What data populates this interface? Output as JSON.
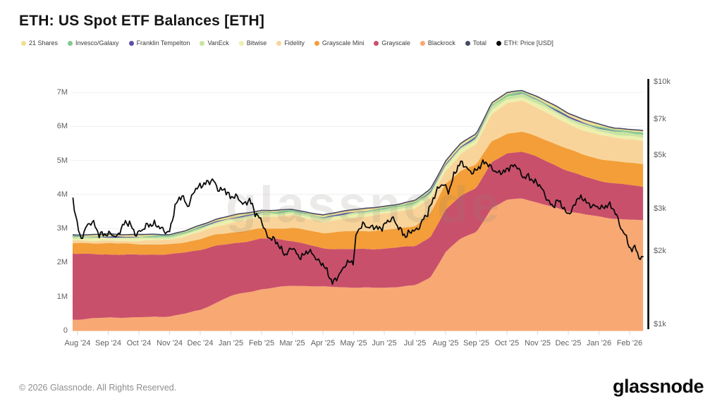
{
  "header": {
    "title": "ETH: US Spot ETF Balances [ETH]"
  },
  "watermark": "glassnode",
  "footer": {
    "copyright": "© 2026 Glassnode. All Rights Reserved.",
    "brand": "glassnode"
  },
  "legend": [
    {
      "label": "21 Shares",
      "color": "#F2DE91"
    },
    {
      "label": "Invesco/Galaxy",
      "color": "#82C98F"
    },
    {
      "label": "Franklin Tempelton",
      "color": "#5B51A8"
    },
    {
      "label": "VanEck",
      "color": "#C8E4A2"
    },
    {
      "label": "Bitwise",
      "color": "#EDEFAD"
    },
    {
      "label": "Fidelity",
      "color": "#F9D49A"
    },
    {
      "label": "Grayscale Mini",
      "color": "#F39E38"
    },
    {
      "label": "Grayscale",
      "color": "#C9506B"
    },
    {
      "label": "Blackrock",
      "color": "#F8A873"
    },
    {
      "label": "Total",
      "color": "#454A63"
    },
    {
      "label": "ETH: Price [USD]",
      "color": "#0A0A0A"
    }
  ],
  "chart_data": {
    "type": "area",
    "stacked": true,
    "title": "ETH: US Spot ETF Balances [ETH]",
    "x_unit": "months since Aug 2024, semi-monthly samples (step 0.5)",
    "t_start": 0,
    "t_step": 0.5,
    "x_ticks": [
      "Aug '24",
      "Sep '24",
      "Oct '24",
      "Nov '24",
      "Dec '24",
      "Jan '25",
      "Feb '25",
      "Mar '25",
      "Apr '25",
      "May '25",
      "Jun '25",
      "Jul '25",
      "Aug '25",
      "Sep '25",
      "Oct '25",
      "Nov '25",
      "Dec '25",
      "Jan '26",
      "Feb '26"
    ],
    "left_axis": {
      "title": "ETF balances (ETH, millions)",
      "ticks": [
        "0",
        "1M",
        "2M",
        "3M",
        "4M",
        "5M",
        "6M",
        "7M"
      ],
      "tick_values": [
        0,
        1,
        2,
        3,
        4,
        5,
        6,
        7
      ],
      "range": [
        0,
        7.35
      ],
      "grid": true
    },
    "right_axis": {
      "title": "ETH price (USD)",
      "scale": "log",
      "ticks": [
        "$1k",
        "$2k",
        "$3k",
        "$5k",
        "$7k",
        "$10k"
      ],
      "tick_values": [
        1000,
        2000,
        3000,
        5000,
        7000,
        10000
      ],
      "range": [
        1000,
        10000
      ]
    },
    "series": [
      {
        "name": "Blackrock",
        "color": "#F8A873",
        "values": [
          0.33,
          0.35,
          0.37,
          0.38,
          0.39,
          0.41,
          0.43,
          0.5,
          0.6,
          0.8,
          1.01,
          1.12,
          1.22,
          1.28,
          1.33,
          1.31,
          1.28,
          1.27,
          1.26,
          1.26,
          1.27,
          1.3,
          1.33,
          1.55,
          2.3,
          2.7,
          2.9,
          3.6,
          3.85,
          3.9,
          3.75,
          3.62,
          3.5,
          3.42,
          3.35,
          3.3,
          3.27,
          3.23
        ]
      },
      {
        "name": "Grayscale",
        "color": "#C9506B",
        "values": [
          1.93,
          1.9,
          1.88,
          1.86,
          1.84,
          1.82,
          1.8,
          1.79,
          1.78,
          1.7,
          1.55,
          1.5,
          1.48,
          1.4,
          1.3,
          1.22,
          1.14,
          1.14,
          1.14,
          1.13,
          1.13,
          1.14,
          1.15,
          1.2,
          1.25,
          1.28,
          1.3,
          1.33,
          1.35,
          1.36,
          1.35,
          1.28,
          1.2,
          1.12,
          1.05,
          1.02,
          1.0,
          0.99
        ]
      },
      {
        "name": "Grayscale Mini",
        "color": "#F39E38",
        "values": [
          0.31,
          0.31,
          0.31,
          0.31,
          0.31,
          0.31,
          0.31,
          0.31,
          0.31,
          0.31,
          0.31,
          0.31,
          0.31,
          0.33,
          0.4,
          0.42,
          0.44,
          0.48,
          0.52,
          0.54,
          0.56,
          0.58,
          0.6,
          0.68,
          0.75,
          0.72,
          0.68,
          0.64,
          0.6,
          0.59,
          0.6,
          0.61,
          0.62,
          0.63,
          0.65,
          0.66,
          0.68,
          0.68
        ]
      },
      {
        "name": "Fidelity",
        "color": "#F9D49A",
        "values": [
          0.08,
          0.08,
          0.09,
          0.09,
          0.1,
          0.11,
          0.12,
          0.16,
          0.21,
          0.26,
          0.3,
          0.32,
          0.33,
          0.33,
          0.35,
          0.34,
          0.33,
          0.37,
          0.41,
          0.43,
          0.46,
          0.48,
          0.5,
          0.45,
          0.4,
          0.5,
          0.6,
          0.8,
          0.87,
          0.9,
          0.85,
          0.8,
          0.75,
          0.72,
          0.7,
          0.68,
          0.67,
          0.66
        ]
      },
      {
        "name": "Bitwise",
        "color": "#EDEFAD",
        "values": [
          0.06,
          0.06,
          0.06,
          0.06,
          0.06,
          0.06,
          0.06,
          0.06,
          0.07,
          0.07,
          0.07,
          0.07,
          0.07,
          0.07,
          0.07,
          0.07,
          0.07,
          0.08,
          0.08,
          0.08,
          0.09,
          0.09,
          0.09,
          0.1,
          0.1,
          0.11,
          0.11,
          0.12,
          0.12,
          0.12,
          0.12,
          0.12,
          0.11,
          0.11,
          0.11,
          0.11,
          0.11,
          0.11
        ]
      },
      {
        "name": "VanEck",
        "color": "#C8E4A2",
        "values": [
          0.04,
          0.04,
          0.04,
          0.04,
          0.04,
          0.04,
          0.04,
          0.04,
          0.05,
          0.05,
          0.05,
          0.05,
          0.05,
          0.05,
          0.05,
          0.05,
          0.05,
          0.06,
          0.06,
          0.06,
          0.06,
          0.06,
          0.07,
          0.07,
          0.07,
          0.08,
          0.08,
          0.09,
          0.09,
          0.09,
          0.09,
          0.09,
          0.09,
          0.08,
          0.08,
          0.08,
          0.08,
          0.08
        ]
      },
      {
        "name": "Franklin Tempelton",
        "color": "#5B51A8",
        "values": [
          0.01,
          0.01,
          0.01,
          0.01,
          0.01,
          0.01,
          0.01,
          0.01,
          0.01,
          0.01,
          0.01,
          0.01,
          0.01,
          0.01,
          0.01,
          0.01,
          0.01,
          0.01,
          0.01,
          0.01,
          0.01,
          0.01,
          0.01,
          0.02,
          0.02,
          0.02,
          0.02,
          0.02,
          0.02,
          0.02,
          0.02,
          0.02,
          0.02,
          0.02,
          0.02,
          0.02,
          0.02,
          0.02
        ]
      },
      {
        "name": "Invesco/Galaxy",
        "color": "#82C98F",
        "values": [
          0.02,
          0.02,
          0.02,
          0.02,
          0.02,
          0.02,
          0.02,
          0.02,
          0.02,
          0.02,
          0.02,
          0.02,
          0.02,
          0.02,
          0.02,
          0.02,
          0.02,
          0.02,
          0.02,
          0.02,
          0.02,
          0.02,
          0.02,
          0.03,
          0.03,
          0.03,
          0.03,
          0.03,
          0.03,
          0.03,
          0.03,
          0.03,
          0.03,
          0.03,
          0.03,
          0.03,
          0.03,
          0.03
        ]
      },
      {
        "name": "21 Shares",
        "color": "#F2DE91",
        "values": [
          0.03,
          0.03,
          0.03,
          0.03,
          0.03,
          0.03,
          0.03,
          0.03,
          0.03,
          0.03,
          0.03,
          0.03,
          0.03,
          0.03,
          0.03,
          0.03,
          0.03,
          0.03,
          0.04,
          0.04,
          0.04,
          0.04,
          0.04,
          0.04,
          0.04,
          0.04,
          0.04,
          0.04,
          0.05,
          0.05,
          0.05,
          0.05,
          0.05,
          0.05,
          0.05,
          0.05,
          0.05,
          0.05
        ]
      }
    ],
    "total_line": {
      "name": "Total",
      "color": "#454A63",
      "note": "sum of all stacked series"
    },
    "price_line": {
      "name": "ETH: Price [USD]",
      "color": "#0A0A0A",
      "axis": "right",
      "points_t_usd_k": [
        [
          -0.15,
          3.25
        ],
        [
          0.1,
          2.2
        ],
        [
          0.3,
          2.5
        ],
        [
          0.5,
          2.7
        ],
        [
          0.7,
          2.35
        ],
        [
          0.9,
          2.3
        ],
        [
          1.1,
          2.4
        ],
        [
          1.3,
          2.3
        ],
        [
          1.5,
          2.55
        ],
        [
          1.7,
          2.65
        ],
        [
          1.9,
          2.35
        ],
        [
          2.1,
          2.4
        ],
        [
          2.3,
          2.6
        ],
        [
          2.5,
          2.62
        ],
        [
          2.7,
          2.45
        ],
        [
          2.9,
          2.4
        ],
        [
          3.0,
          2.45
        ],
        [
          3.2,
          3.1
        ],
        [
          3.4,
          3.35
        ],
        [
          3.6,
          3.1
        ],
        [
          3.8,
          3.55
        ],
        [
          4.0,
          3.65
        ],
        [
          4.2,
          3.9
        ],
        [
          4.4,
          3.95
        ],
        [
          4.6,
          3.5
        ],
        [
          4.8,
          3.65
        ],
        [
          5.0,
          3.35
        ],
        [
          5.2,
          3.3
        ],
        [
          5.4,
          3.15
        ],
        [
          5.6,
          3.3
        ],
        [
          5.8,
          2.8
        ],
        [
          6.0,
          2.7
        ],
        [
          6.2,
          2.3
        ],
        [
          6.5,
          2.15
        ],
        [
          6.8,
          1.95
        ],
        [
          7.0,
          2.05
        ],
        [
          7.2,
          1.9
        ],
        [
          7.5,
          2.0
        ],
        [
          7.8,
          1.85
        ],
        [
          8.0,
          1.8
        ],
        [
          8.3,
          1.45
        ],
        [
          8.5,
          1.6
        ],
        [
          8.7,
          1.75
        ],
        [
          9.0,
          1.8
        ],
        [
          9.1,
          2.45
        ],
        [
          9.3,
          2.6
        ],
        [
          9.5,
          2.45
        ],
        [
          9.7,
          2.55
        ],
        [
          9.9,
          2.5
        ],
        [
          10.1,
          2.6
        ],
        [
          10.3,
          2.75
        ],
        [
          10.5,
          2.5
        ],
        [
          10.7,
          2.25
        ],
        [
          10.9,
          2.45
        ],
        [
          11.1,
          2.5
        ],
        [
          11.4,
          2.8
        ],
        [
          11.7,
          3.6
        ],
        [
          11.9,
          3.75
        ],
        [
          12.1,
          3.5
        ],
        [
          12.3,
          4.3
        ],
        [
          12.5,
          4.6
        ],
        [
          12.7,
          4.35
        ],
        [
          12.9,
          4.3
        ],
        [
          13.1,
          4.4
        ],
        [
          13.3,
          4.65
        ],
        [
          13.5,
          4.5
        ],
        [
          13.7,
          4.15
        ],
        [
          13.9,
          4.2
        ],
        [
          14.1,
          4.55
        ],
        [
          14.3,
          4.5
        ],
        [
          14.5,
          4.0
        ],
        [
          14.7,
          4.15
        ],
        [
          14.9,
          3.85
        ],
        [
          15.1,
          3.65
        ],
        [
          15.3,
          3.35
        ],
        [
          15.5,
          3.05
        ],
        [
          15.7,
          3.2
        ],
        [
          15.9,
          2.95
        ],
        [
          16.1,
          2.9
        ],
        [
          16.3,
          3.25
        ],
        [
          16.5,
          3.35
        ],
        [
          16.7,
          3.1
        ],
        [
          16.9,
          3.0
        ],
        [
          17.1,
          3.05
        ],
        [
          17.3,
          3.15
        ],
        [
          17.5,
          2.9
        ],
        [
          17.7,
          2.55
        ],
        [
          17.9,
          2.3
        ],
        [
          18.05,
          1.95
        ],
        [
          18.2,
          2.1
        ],
        [
          18.3,
          1.85
        ],
        [
          18.44,
          1.95
        ]
      ]
    }
  }
}
